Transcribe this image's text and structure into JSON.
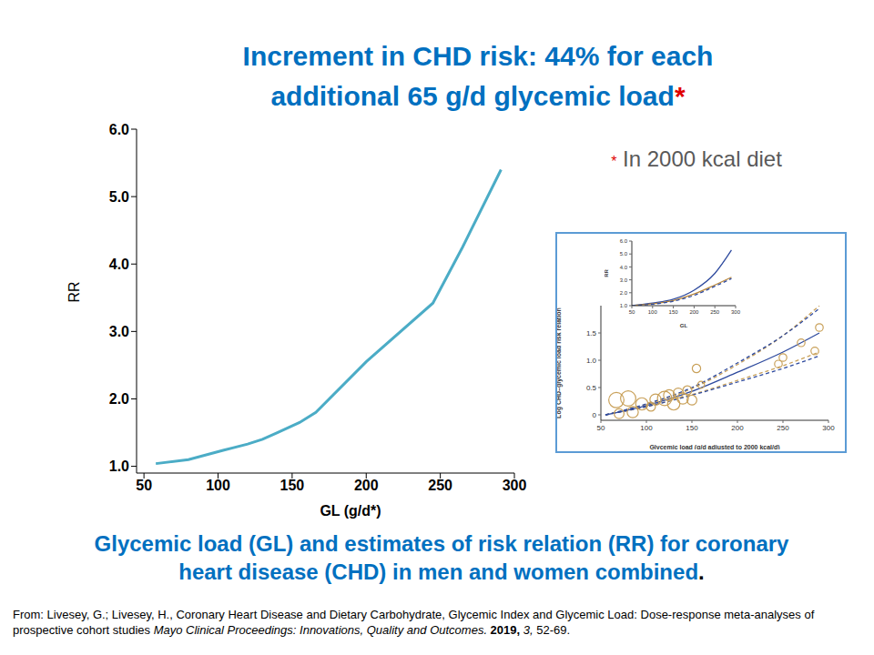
{
  "title": "Increment in CHD risk: 44% for each additional 65 g/d glycemic load",
  "title_mark": "*",
  "footnote_mark": "*",
  "footnote": "In 2000 kcal diet",
  "caption": "Glycemic load (GL) and estimates of risk relation (RR) for coronary heart disease (CHD) in men and women combined",
  "caption_end": ".",
  "source": [
    {
      "text": "From: Livesey, G.; Livesey, H., Coronary Heart Disease and Dietary Carbohydrate, Glycemic Index and Glycemic Load: Dose-response meta-analyses of prospective cohort studies ",
      "style": "normal"
    },
    {
      "text": "Mayo Clinical Proceedings: Innovations, Quality and Outcomes. ",
      "style": "italic"
    },
    {
      "text": "2019, ",
      "style": "bold"
    },
    {
      "text": "3,",
      "style": "italic"
    },
    {
      "text": " 52-69.",
      "style": "normal"
    }
  ],
  "chart_data": [
    {
      "type": "line",
      "xlabel": "GL (g/d*)",
      "ylabel": "RR",
      "x": [
        58,
        80,
        104,
        120,
        130,
        140,
        155,
        166,
        200,
        245,
        265,
        291
      ],
      "values": [
        1.04,
        1.1,
        1.24,
        1.33,
        1.4,
        1.5,
        1.65,
        1.8,
        2.55,
        3.42,
        4.25,
        5.4
      ],
      "color": "#4bacc6",
      "xlim": [
        45,
        300
      ],
      "xticks": [
        50,
        100,
        150,
        200,
        250,
        300
      ],
      "ylim": [
        0.9,
        6
      ],
      "yticks": [
        {
          "value": 1,
          "label": "1.0"
        },
        {
          "value": 2,
          "label": "2.0"
        },
        {
          "value": 3,
          "label": "3.0"
        },
        {
          "value": 4,
          "label": "4.0"
        },
        {
          "value": 5,
          "label": "5.0"
        },
        {
          "value": 6,
          "label": "6.0"
        }
      ],
      "grid": false
    },
    {
      "type": "line",
      "xlabel": "Glycemic load (g/d adjusted to 2000 kcal/d)",
      "ylabel": "Log CHD–glycemic load risk relation",
      "xlim": [
        50,
        300
      ],
      "xticks": [
        50,
        100,
        150,
        200,
        250,
        300
      ],
      "ylim": [
        -0.1,
        2.0
      ],
      "yticks": [
        0,
        0.5,
        {
          "value": 1,
          "label": "1.0"
        },
        1.5
      ],
      "grid": false,
      "series": [
        {
          "type": "scatter",
          "marker": "open_circle",
          "color": "#c9a15a",
          "x": [
            67,
            80,
            95,
            70,
            85,
            110,
            120,
            125,
            130,
            135,
            140,
            145,
            150,
            155,
            105,
            245,
            250,
            270,
            285,
            290,
            160
          ],
          "values": [
            0.27,
            0.3,
            0.2,
            0.02,
            0.05,
            0.28,
            0.3,
            0.36,
            0.2,
            0.4,
            0.3,
            0.45,
            0.27,
            0.85,
            0.15,
            0.93,
            1.05,
            1.32,
            1.17,
            1.6,
            0.55
          ],
          "size": [
            40,
            40,
            25,
            15,
            20,
            20,
            35,
            20,
            25,
            15,
            20,
            12,
            15,
            10,
            12,
            8,
            8,
            8,
            8,
            8,
            6
          ]
        },
        {
          "type": "line",
          "line_style": "dashed",
          "color": "#c9a15a",
          "x": [
            55,
            100,
            150,
            200,
            250,
            290
          ],
          "values": [
            0,
            0.19,
            0.48,
            0.92,
            1.45,
            2.0
          ]
        },
        {
          "type": "line",
          "line_style": "dashed",
          "color": "#c9a15a",
          "x": [
            55,
            100,
            150,
            200,
            250,
            290
          ],
          "values": [
            0,
            0.15,
            0.37,
            0.63,
            0.9,
            1.15
          ]
        },
        {
          "type": "line",
          "line_style": "dashed",
          "color": "#2e4a9e",
          "x": [
            55,
            100,
            150,
            200,
            250,
            290
          ],
          "values": [
            0,
            0.2,
            0.5,
            0.95,
            1.45,
            1.95
          ]
        },
        {
          "type": "line",
          "line_style": "dashed",
          "color": "#2e4a9e",
          "x": [
            55,
            100,
            150,
            200,
            250,
            290
          ],
          "values": [
            0,
            0.15,
            0.36,
            0.6,
            0.85,
            1.08
          ]
        },
        {
          "type": "line",
          "line_style": "solid",
          "color": "#2e4a9e",
          "x": [
            55,
            100,
            150,
            200,
            250,
            290
          ],
          "values": [
            0,
            0.17,
            0.43,
            0.78,
            1.15,
            1.5
          ]
        }
      ]
    },
    {
      "type": "line",
      "xlabel": "GL",
      "ylabel": "RR",
      "xlim": [
        50,
        300
      ],
      "xticks": [
        50,
        100,
        150,
        200,
        250,
        300
      ],
      "ylim": [
        1,
        6
      ],
      "yticks": [
        {
          "value": 1,
          "label": "1.0"
        },
        {
          "value": 2,
          "label": "2.0"
        },
        {
          "value": 3,
          "label": "3.0"
        },
        {
          "value": 4,
          "label": "4.0"
        },
        {
          "value": 5,
          "label": "5.0"
        },
        {
          "value": 6,
          "label": "6.0"
        }
      ],
      "grid": false,
      "series": [
        {
          "type": "line",
          "line_style": "solid",
          "color": "#2e4a9e",
          "x": [
            50,
            100,
            150,
            200,
            250,
            290
          ],
          "values": [
            1.0,
            1.2,
            1.5,
            2.2,
            3.5,
            5.3
          ]
        },
        {
          "type": "line",
          "line_style": "solid",
          "color": "#b8863b",
          "x": [
            50,
            100,
            150,
            200,
            250,
            290
          ],
          "values": [
            1.0,
            1.15,
            1.4,
            1.9,
            2.6,
            3.2
          ]
        },
        {
          "type": "line",
          "line_style": "dashed",
          "color": "#2e4a9e",
          "x": [
            50,
            100,
            150,
            200,
            250,
            290
          ],
          "values": [
            1.0,
            1.12,
            1.35,
            1.8,
            2.5,
            3.1
          ]
        }
      ]
    }
  ]
}
